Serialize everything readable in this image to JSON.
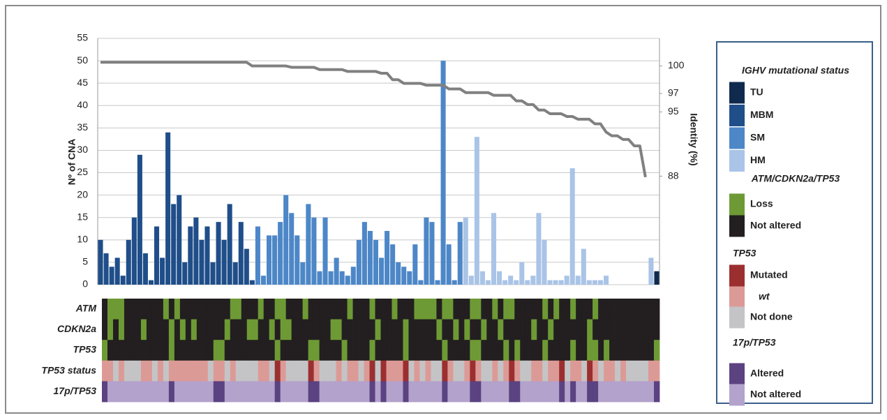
{
  "chart_data": {
    "type": "bar",
    "y_label": "Nº of CNA",
    "y2_label": "Identity (%)",
    "ylim": [
      0,
      55
    ],
    "yticks": [
      0,
      5,
      10,
      15,
      20,
      25,
      30,
      35,
      40,
      45,
      50,
      55
    ],
    "y2lim": [
      76.2,
      103
    ],
    "y2ticks": [
      88,
      95,
      97,
      100
    ],
    "grid": true,
    "series": [
      {
        "name": "TU",
        "color": "#0f2a4d",
        "values": [
          null,
          null,
          null,
          null,
          null,
          null,
          null,
          null,
          null,
          null,
          null,
          null,
          null,
          null,
          null,
          null,
          null,
          null,
          null,
          null,
          null,
          null,
          null,
          null,
          null,
          null,
          null,
          null,
          null,
          null,
          null,
          null,
          null,
          null,
          null,
          null,
          null,
          null,
          null,
          null,
          null,
          null,
          null,
          null,
          null,
          null,
          null,
          null,
          null,
          null,
          null,
          null,
          null,
          null,
          null,
          null,
          null,
          null,
          null,
          null,
          null,
          null,
          null,
          null,
          null,
          null,
          null,
          null,
          null,
          null,
          null,
          null,
          null,
          null,
          null,
          null,
          null,
          null,
          null,
          null,
          null,
          null,
          null,
          null,
          null,
          null,
          null,
          null,
          null,
          null,
          null,
          null,
          null,
          null,
          null,
          null,
          null,
          null,
          null,
          3
        ]
      },
      {
        "name": "MBM",
        "color": "#1f4e89",
        "values": [
          10,
          7,
          4,
          6,
          2,
          10,
          15,
          29,
          7,
          1,
          13,
          6,
          34,
          18,
          20,
          5,
          13,
          15,
          10,
          13,
          5,
          14,
          10,
          18,
          5,
          14,
          8,
          1,
          null,
          null,
          null,
          null,
          null,
          null,
          null,
          null,
          null,
          null,
          null,
          null,
          null,
          null,
          null,
          null,
          null,
          null,
          null,
          null,
          null,
          null,
          null,
          null,
          null,
          null,
          null,
          null,
          null,
          null,
          null,
          null,
          null,
          null,
          null,
          null,
          null,
          null,
          null,
          null,
          null,
          null,
          null,
          null,
          null,
          null,
          null,
          null,
          null,
          null,
          null,
          null,
          null,
          null,
          null,
          null,
          null,
          null,
          null,
          null,
          null,
          null,
          null,
          null,
          null,
          null,
          null,
          null,
          null,
          null,
          null,
          null
        ]
      },
      {
        "name": "SM",
        "color": "#4d87c7",
        "values": [
          null,
          null,
          null,
          null,
          null,
          null,
          null,
          null,
          null,
          null,
          null,
          null,
          null,
          null,
          null,
          null,
          null,
          null,
          null,
          null,
          null,
          null,
          null,
          null,
          null,
          null,
          null,
          null,
          13,
          2,
          11,
          11,
          14,
          20,
          16,
          11,
          5,
          18,
          15,
          3,
          15,
          3,
          6,
          3,
          2,
          4,
          10,
          14,
          12,
          10,
          6,
          12,
          9,
          5,
          4,
          3,
          9,
          1,
          15,
          14,
          1,
          50,
          9,
          1,
          14,
          null,
          null,
          null,
          null,
          null,
          null,
          null,
          null,
          null,
          null,
          null,
          null,
          null,
          null,
          null,
          null,
          null,
          null,
          null,
          null,
          null,
          null,
          null,
          null,
          null,
          null,
          null,
          null,
          null,
          null,
          null,
          null,
          null,
          null,
          null
        ]
      },
      {
        "name": "HM",
        "color": "#a9c4e7",
        "values": [
          null,
          null,
          null,
          null,
          null,
          null,
          null,
          null,
          null,
          null,
          null,
          null,
          null,
          null,
          null,
          null,
          null,
          null,
          null,
          null,
          null,
          null,
          null,
          null,
          null,
          null,
          null,
          null,
          null,
          null,
          null,
          null,
          null,
          null,
          null,
          null,
          null,
          null,
          null,
          null,
          null,
          null,
          null,
          null,
          null,
          null,
          null,
          null,
          null,
          null,
          null,
          null,
          null,
          null,
          null,
          null,
          null,
          null,
          null,
          null,
          null,
          null,
          null,
          null,
          null,
          15,
          2,
          33,
          3,
          1,
          16,
          3,
          1,
          2,
          1,
          5,
          1,
          2,
          16,
          10,
          1,
          1,
          1,
          2,
          26,
          2,
          8,
          1,
          1,
          1,
          2,
          0,
          0,
          0,
          0,
          0,
          0,
          0,
          6,
          null
        ]
      },
      {
        "type": "line",
        "axis": "y2",
        "color": "#808080",
        "values": [
          100.4,
          100.4,
          100.4,
          100.4,
          100.4,
          100.4,
          100.4,
          100.4,
          100.4,
          100.4,
          100.4,
          100.4,
          100.4,
          100.4,
          100.4,
          100.4,
          100.4,
          100.4,
          100.4,
          100.4,
          100.4,
          100.4,
          100.4,
          100.4,
          100.4,
          100.4,
          100.4,
          100,
          100,
          100,
          100,
          100,
          100,
          100,
          99.85,
          99.85,
          99.85,
          99.85,
          99.85,
          99.6,
          99.6,
          99.6,
          99.6,
          99.6,
          99.4,
          99.4,
          99.4,
          99.4,
          99.4,
          99.4,
          99.2,
          99.2,
          98.5,
          98.5,
          98.1,
          98.1,
          98.1,
          98.1,
          97.9,
          97.9,
          97.9,
          97.9,
          97.5,
          97.5,
          97.5,
          97.1,
          97.1,
          97.1,
          97.1,
          97.1,
          96.8,
          96.8,
          96.8,
          96.8,
          96.2,
          96.2,
          95.8,
          95.8,
          95.2,
          95.2,
          94.8,
          94.8,
          94.8,
          94.5,
          94.5,
          94.2,
          94.2,
          94.2,
          93.7,
          93.7,
          92.8,
          92.4,
          92.4,
          92,
          92,
          91.3,
          91.3,
          87.9,
          null,
          null
        ]
      }
    ]
  },
  "heatmap": {
    "rows": [
      {
        "label": "ATM",
        "values": [
          1,
          0,
          0,
          0,
          1,
          1,
          1,
          1,
          1,
          1,
          1,
          0,
          1,
          0,
          1,
          1,
          1,
          1,
          1,
          1,
          1,
          1,
          1,
          0,
          0,
          1,
          1,
          1,
          0,
          1,
          1,
          0,
          0,
          1,
          1,
          1,
          0,
          1,
          1,
          1,
          1,
          1,
          1,
          1,
          0,
          1,
          1,
          1,
          0,
          1,
          1,
          1,
          0,
          1,
          1,
          1,
          0,
          0,
          0,
          0,
          1,
          0,
          0,
          1,
          1,
          1,
          0,
          0,
          1,
          1,
          0,
          1,
          0,
          0,
          1,
          1,
          1,
          1,
          1,
          0,
          1,
          0,
          1,
          1,
          0,
          1,
          1,
          1,
          0,
          1,
          1,
          1,
          1,
          1,
          1,
          1,
          1,
          1,
          1,
          1
        ]
      },
      {
        "label": "CDKN2a",
        "values": [
          1,
          0,
          1,
          0,
          1,
          1,
          1,
          0,
          1,
          1,
          1,
          1,
          0,
          1,
          0,
          1,
          0,
          1,
          1,
          1,
          1,
          1,
          0,
          1,
          1,
          1,
          0,
          0,
          1,
          1,
          0,
          1,
          0,
          0,
          1,
          1,
          1,
          1,
          1,
          1,
          1,
          0,
          0,
          1,
          1,
          1,
          1,
          1,
          1,
          0,
          1,
          1,
          1,
          1,
          0,
          1,
          1,
          1,
          1,
          1,
          0,
          1,
          1,
          0,
          1,
          0,
          1,
          1,
          0,
          1,
          1,
          0,
          1,
          1,
          1,
          1,
          1,
          0,
          1,
          1,
          0,
          1,
          1,
          1,
          1,
          1,
          1,
          0,
          1,
          1,
          1,
          1,
          1,
          1,
          1,
          1,
          1,
          1,
          1,
          1
        ]
      },
      {
        "label": "TP53",
        "values": [
          0,
          1,
          1,
          1,
          1,
          1,
          1,
          1,
          1,
          1,
          1,
          1,
          0,
          1,
          1,
          1,
          1,
          1,
          1,
          1,
          0,
          0,
          1,
          1,
          1,
          1,
          1,
          1,
          1,
          1,
          1,
          0,
          1,
          1,
          1,
          1,
          1,
          0,
          0,
          1,
          1,
          1,
          1,
          0,
          1,
          1,
          1,
          1,
          0,
          1,
          1,
          1,
          1,
          1,
          0,
          1,
          1,
          1,
          1,
          1,
          1,
          0,
          1,
          1,
          1,
          1,
          0,
          0,
          1,
          1,
          1,
          1,
          0,
          1,
          0,
          1,
          1,
          1,
          1,
          0,
          1,
          1,
          1,
          1,
          0,
          1,
          1,
          0,
          0,
          1,
          0,
          1,
          1,
          1,
          1,
          1,
          1,
          1,
          1,
          0
        ]
      },
      {
        "label": "TP53 status",
        "values": [
          1,
          1,
          2,
          1,
          2,
          2,
          2,
          1,
          1,
          2,
          1,
          2,
          1,
          1,
          1,
          1,
          1,
          1,
          1,
          2,
          1,
          1,
          2,
          1,
          2,
          2,
          2,
          2,
          1,
          1,
          2,
          0,
          1,
          2,
          2,
          2,
          2,
          0,
          1,
          2,
          2,
          2,
          1,
          2,
          1,
          1,
          2,
          1,
          0,
          2,
          0,
          1,
          1,
          1,
          0,
          2,
          1,
          2,
          1,
          2,
          2,
          0,
          1,
          2,
          2,
          1,
          0,
          1,
          2,
          2,
          1,
          2,
          1,
          0,
          1,
          2,
          2,
          1,
          1,
          2,
          1,
          1,
          0,
          2,
          1,
          1,
          2,
          0,
          1,
          2,
          1,
          1,
          2,
          1,
          2,
          2,
          2,
          2,
          1,
          1
        ]
      },
      {
        "label": "17p/TP53",
        "values": [
          0,
          1,
          1,
          1,
          1,
          1,
          1,
          1,
          1,
          1,
          1,
          1,
          0,
          1,
          1,
          1,
          1,
          1,
          1,
          1,
          0,
          0,
          1,
          1,
          1,
          1,
          1,
          1,
          1,
          1,
          1,
          0,
          1,
          1,
          1,
          1,
          1,
          0,
          0,
          1,
          1,
          1,
          1,
          1,
          1,
          1,
          1,
          1,
          0,
          1,
          0,
          1,
          1,
          1,
          0,
          1,
          1,
          1,
          1,
          1,
          1,
          0,
          1,
          1,
          1,
          1,
          0,
          0,
          1,
          1,
          1,
          1,
          1,
          0,
          0,
          1,
          1,
          1,
          1,
          1,
          1,
          1,
          0,
          1,
          0,
          1,
          1,
          0,
          0,
          1,
          1,
          1,
          1,
          1,
          1,
          1,
          1,
          1,
          1,
          0
        ]
      }
    ]
  },
  "legend": {
    "ighv_title": "IGHV mutational status",
    "sections": [
      {
        "title": "ATM/CDKN2a/TP53",
        "items": [
          {
            "label": "Loss",
            "color": "#6e9a35"
          },
          {
            "label": "Not altered",
            "color": "#231f20"
          }
        ]
      },
      {
        "title": "TP53",
        "items": [
          {
            "label": "Mutated",
            "color": "#9b2f2f"
          },
          {
            "label": "wt",
            "color": "#dc9a96"
          },
          {
            "label": "Not done",
            "color": "#c4c4c6"
          }
        ]
      },
      {
        "title": "17p/TP53",
        "items": [
          {
            "label": "Altered",
            "color": "#5b4280"
          },
          {
            "label": "Not altered",
            "color": "#b3a2cc"
          }
        ]
      }
    ]
  }
}
